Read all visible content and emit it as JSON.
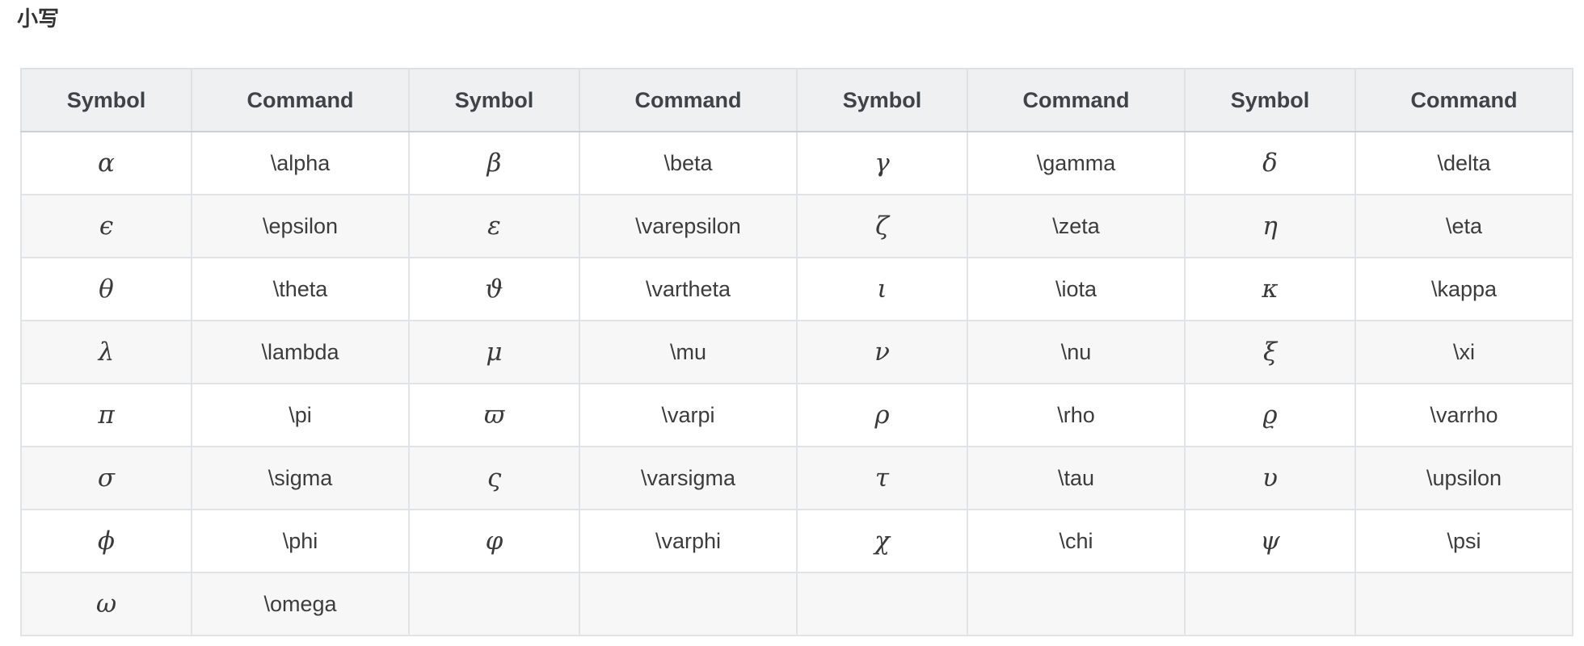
{
  "page": {
    "title": "小写"
  },
  "table": {
    "headers": [
      "Symbol",
      "Command",
      "Symbol",
      "Command",
      "Symbol",
      "Command",
      "Symbol",
      "Command"
    ],
    "rows": [
      [
        "α",
        "\\alpha",
        "β",
        "\\beta",
        "γ",
        "\\gamma",
        "δ",
        "\\delta"
      ],
      [
        "ϵ",
        "\\epsilon",
        "ε",
        "\\varepsilon",
        "ζ",
        "\\zeta",
        "η",
        "\\eta"
      ],
      [
        "θ",
        "\\theta",
        "ϑ",
        "\\vartheta",
        "ι",
        "\\iota",
        "κ",
        "\\kappa"
      ],
      [
        "λ",
        "\\lambda",
        "μ",
        "\\mu",
        "ν",
        "\\nu",
        "ξ",
        "\\xi"
      ],
      [
        "π",
        "\\pi",
        "ϖ",
        "\\varpi",
        "ρ",
        "\\rho",
        "ϱ",
        "\\varrho"
      ],
      [
        "σ",
        "\\sigma",
        "ς",
        "\\varsigma",
        "τ",
        "\\tau",
        "υ",
        "\\upsilon"
      ],
      [
        "ϕ",
        "\\phi",
        "φ",
        "\\varphi",
        "χ",
        "\\chi",
        "ψ",
        "\\psi"
      ],
      [
        "ω",
        "\\omega",
        "",
        "",
        "",
        "",
        "",
        ""
      ]
    ]
  },
  "colors": {
    "header_bg": "#eef0f2",
    "row_alt_bg": "#f7f7f8",
    "row_bg": "#ffffff",
    "border": "#e2e3e5",
    "header_border_bottom": "#cdd0d3",
    "title_text": "#333333",
    "header_text": "#3f4346",
    "cell_text": "#3c3c3c"
  }
}
